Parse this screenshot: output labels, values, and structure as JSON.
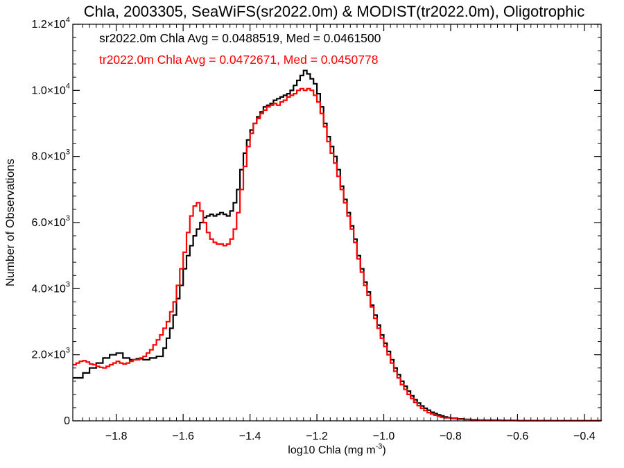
{
  "chart_data": {
    "type": "line",
    "step": true,
    "title": "Chla, 2003305, SeaWiFS(sr2022.0m) & MODIST(tr2022.0m), Oligotrophic",
    "xlabel": "log10 Chla (mg m",
    "xlabel_sup": "-3",
    "xlabel_tail": ")",
    "ylabel": "Number of Observations",
    "xlim": [
      -1.93,
      -0.35
    ],
    "ylim": [
      0,
      12000
    ],
    "grid": false,
    "x_ticks": [
      {
        "v": -1.8,
        "label": "−1.8"
      },
      {
        "v": -1.6,
        "label": "−1.6"
      },
      {
        "v": -1.4,
        "label": "−1.4"
      },
      {
        "v": -1.2,
        "label": "−1.2"
      },
      {
        "v": -1.0,
        "label": "−1.0"
      },
      {
        "v": -0.8,
        "label": "−0.8"
      },
      {
        "v": -0.6,
        "label": "−0.6"
      },
      {
        "v": -0.4,
        "label": "−0.4"
      }
    ],
    "y_ticks": [
      {
        "v": 0,
        "mant": "0",
        "exp": ""
      },
      {
        "v": 2000,
        "mant": "2.0×10",
        "exp": "3"
      },
      {
        "v": 4000,
        "mant": "4.0×10",
        "exp": "3"
      },
      {
        "v": 6000,
        "mant": "6.0×10",
        "exp": "3"
      },
      {
        "v": 8000,
        "mant": "8.0×10",
        "exp": "3"
      },
      {
        "v": 10000,
        "mant": "1.0×10",
        "exp": "4"
      },
      {
        "v": 12000,
        "mant": "1.2×10",
        "exp": "4"
      }
    ],
    "annotations": [
      {
        "text": "sr2022.0m Chla Avg = 0.0488519, Med = 0.0461500",
        "color": "#000000"
      },
      {
        "text": "tr2022.0m Chla Avg = 0.0472671, Med = 0.0450778",
        "color": "#ff0000"
      }
    ],
    "series": [
      {
        "color": "#000000",
        "points": [
          [
            -1.93,
            1300
          ],
          [
            -1.9,
            1450
          ],
          [
            -1.88,
            1600
          ],
          [
            -1.86,
            1750
          ],
          [
            -1.84,
            1900
          ],
          [
            -1.82,
            2000
          ],
          [
            -1.8,
            2050
          ],
          [
            -1.78,
            1900
          ],
          [
            -1.76,
            1850
          ],
          [
            -1.74,
            1880
          ],
          [
            -1.72,
            1850
          ],
          [
            -1.7,
            1900
          ],
          [
            -1.68,
            1950
          ],
          [
            -1.66,
            2200
          ],
          [
            -1.65,
            2500
          ],
          [
            -1.64,
            2800
          ],
          [
            -1.63,
            3200
          ],
          [
            -1.62,
            3700
          ],
          [
            -1.61,
            4100
          ],
          [
            -1.6,
            4600
          ],
          [
            -1.59,
            5000
          ],
          [
            -1.58,
            5300
          ],
          [
            -1.57,
            5600
          ],
          [
            -1.56,
            5800
          ],
          [
            -1.55,
            6000
          ],
          [
            -1.54,
            6150
          ],
          [
            -1.53,
            6200
          ],
          [
            -1.52,
            6250
          ],
          [
            -1.51,
            6200
          ],
          [
            -1.5,
            6250
          ],
          [
            -1.49,
            6300
          ],
          [
            -1.48,
            6250
          ],
          [
            -1.47,
            6200
          ],
          [
            -1.46,
            6350
          ],
          [
            -1.45,
            6600
          ],
          [
            -1.44,
            7000
          ],
          [
            -1.43,
            7600
          ],
          [
            -1.42,
            8100
          ],
          [
            -1.41,
            8500
          ],
          [
            -1.4,
            8800
          ],
          [
            -1.39,
            9000
          ],
          [
            -1.38,
            9200
          ],
          [
            -1.37,
            9350
          ],
          [
            -1.36,
            9500
          ],
          [
            -1.35,
            9550
          ],
          [
            -1.34,
            9600
          ],
          [
            -1.33,
            9700
          ],
          [
            -1.32,
            9750
          ],
          [
            -1.31,
            9800
          ],
          [
            -1.3,
            9850
          ],
          [
            -1.29,
            9900
          ],
          [
            -1.28,
            10000
          ],
          [
            -1.27,
            10150
          ],
          [
            -1.26,
            10300
          ],
          [
            -1.25,
            10450
          ],
          [
            -1.24,
            10600
          ],
          [
            -1.23,
            10500
          ],
          [
            -1.22,
            10350
          ],
          [
            -1.21,
            10200
          ],
          [
            -1.2,
            9900
          ],
          [
            -1.19,
            9500
          ],
          [
            -1.18,
            9000
          ],
          [
            -1.17,
            8600
          ],
          [
            -1.16,
            8300
          ],
          [
            -1.15,
            8000
          ],
          [
            -1.14,
            7600
          ],
          [
            -1.13,
            7100
          ],
          [
            -1.12,
            6700
          ],
          [
            -1.11,
            6300
          ],
          [
            -1.1,
            5900
          ],
          [
            -1.09,
            5500
          ],
          [
            -1.08,
            5000
          ],
          [
            -1.07,
            4600
          ],
          [
            -1.06,
            4200
          ],
          [
            -1.05,
            3900
          ],
          [
            -1.04,
            3500
          ],
          [
            -1.03,
            3200
          ],
          [
            -1.02,
            2900
          ],
          [
            -1.01,
            2600
          ],
          [
            -1.0,
            2350
          ],
          [
            -0.99,
            2100
          ],
          [
            -0.98,
            1850
          ],
          [
            -0.97,
            1600
          ],
          [
            -0.96,
            1400
          ],
          [
            -0.95,
            1200
          ],
          [
            -0.94,
            1050
          ],
          [
            -0.93,
            900
          ],
          [
            -0.92,
            760
          ],
          [
            -0.91,
            640
          ],
          [
            -0.9,
            540
          ],
          [
            -0.89,
            450
          ],
          [
            -0.88,
            380
          ],
          [
            -0.87,
            320
          ],
          [
            -0.86,
            260
          ],
          [
            -0.85,
            220
          ],
          [
            -0.84,
            180
          ],
          [
            -0.83,
            150
          ],
          [
            -0.82,
            120
          ],
          [
            -0.81,
            100
          ],
          [
            -0.8,
            80
          ],
          [
            -0.78,
            60
          ],
          [
            -0.76,
            45
          ],
          [
            -0.74,
            35
          ],
          [
            -0.72,
            25
          ],
          [
            -0.7,
            20
          ],
          [
            -0.65,
            12
          ],
          [
            -0.6,
            8
          ],
          [
            -0.5,
            4
          ],
          [
            -0.35,
            0
          ]
        ]
      },
      {
        "color": "#ff0000",
        "points": [
          [
            -1.93,
            1700
          ],
          [
            -1.92,
            1750
          ],
          [
            -1.91,
            1800
          ],
          [
            -1.9,
            1820
          ],
          [
            -1.89,
            1780
          ],
          [
            -1.88,
            1720
          ],
          [
            -1.87,
            1700
          ],
          [
            -1.86,
            1650
          ],
          [
            -1.85,
            1620
          ],
          [
            -1.84,
            1600
          ],
          [
            -1.83,
            1650
          ],
          [
            -1.82,
            1700
          ],
          [
            -1.81,
            1750
          ],
          [
            -1.8,
            1800
          ],
          [
            -1.79,
            1750
          ],
          [
            -1.78,
            1720
          ],
          [
            -1.77,
            1750
          ],
          [
            -1.76,
            1800
          ],
          [
            -1.75,
            1850
          ],
          [
            -1.74,
            1850
          ],
          [
            -1.73,
            1900
          ],
          [
            -1.72,
            1950
          ],
          [
            -1.71,
            2050
          ],
          [
            -1.7,
            2150
          ],
          [
            -1.69,
            2300
          ],
          [
            -1.68,
            2450
          ],
          [
            -1.67,
            2600
          ],
          [
            -1.66,
            2800
          ],
          [
            -1.65,
            3000
          ],
          [
            -1.64,
            3300
          ],
          [
            -1.63,
            3600
          ],
          [
            -1.62,
            4100
          ],
          [
            -1.61,
            4600
          ],
          [
            -1.6,
            5100
          ],
          [
            -1.59,
            5700
          ],
          [
            -1.58,
            6200
          ],
          [
            -1.57,
            6500
          ],
          [
            -1.56,
            6600
          ],
          [
            -1.55,
            6350
          ],
          [
            -1.54,
            6000
          ],
          [
            -1.53,
            5700
          ],
          [
            -1.52,
            5500
          ],
          [
            -1.51,
            5400
          ],
          [
            -1.5,
            5350
          ],
          [
            -1.49,
            5350
          ],
          [
            -1.48,
            5300
          ],
          [
            -1.47,
            5350
          ],
          [
            -1.46,
            5500
          ],
          [
            -1.45,
            5800
          ],
          [
            -1.44,
            6300
          ],
          [
            -1.43,
            7000
          ],
          [
            -1.42,
            7700
          ],
          [
            -1.41,
            8300
          ],
          [
            -1.4,
            8700
          ],
          [
            -1.39,
            9000
          ],
          [
            -1.38,
            9150
          ],
          [
            -1.37,
            9300
          ],
          [
            -1.36,
            9400
          ],
          [
            -1.35,
            9500
          ],
          [
            -1.34,
            9550
          ],
          [
            -1.33,
            9600
          ],
          [
            -1.32,
            9550
          ],
          [
            -1.31,
            9650
          ],
          [
            -1.3,
            9700
          ],
          [
            -1.29,
            9800
          ],
          [
            -1.28,
            9850
          ],
          [
            -1.27,
            9900
          ],
          [
            -1.26,
            10000
          ],
          [
            -1.25,
            10050
          ],
          [
            -1.24,
            10000
          ],
          [
            -1.23,
            10050
          ],
          [
            -1.22,
            10000
          ],
          [
            -1.21,
            9850
          ],
          [
            -1.2,
            9650
          ],
          [
            -1.19,
            9300
          ],
          [
            -1.18,
            8900
          ],
          [
            -1.17,
            8450
          ],
          [
            -1.16,
            8100
          ],
          [
            -1.15,
            7800
          ],
          [
            -1.14,
            7400
          ],
          [
            -1.13,
            7000
          ],
          [
            -1.12,
            6600
          ],
          [
            -1.11,
            6200
          ],
          [
            -1.1,
            5800
          ],
          [
            -1.09,
            5400
          ],
          [
            -1.08,
            4900
          ],
          [
            -1.07,
            4500
          ],
          [
            -1.06,
            4100
          ],
          [
            -1.05,
            3800
          ],
          [
            -1.04,
            3450
          ],
          [
            -1.03,
            3100
          ],
          [
            -1.02,
            2800
          ],
          [
            -1.01,
            2500
          ],
          [
            -1.0,
            2250
          ],
          [
            -0.99,
            2000
          ],
          [
            -0.98,
            1750
          ],
          [
            -0.97,
            1500
          ],
          [
            -0.96,
            1300
          ],
          [
            -0.95,
            1100
          ],
          [
            -0.94,
            950
          ],
          [
            -0.93,
            800
          ],
          [
            -0.92,
            680
          ],
          [
            -0.91,
            560
          ],
          [
            -0.9,
            460
          ],
          [
            -0.89,
            380
          ],
          [
            -0.88,
            310
          ],
          [
            -0.87,
            250
          ],
          [
            -0.86,
            210
          ],
          [
            -0.85,
            170
          ],
          [
            -0.84,
            140
          ],
          [
            -0.83,
            110
          ],
          [
            -0.82,
            90
          ],
          [
            -0.8,
            70
          ],
          [
            -0.78,
            50
          ],
          [
            -0.76,
            38
          ],
          [
            -0.74,
            28
          ],
          [
            -0.72,
            20
          ],
          [
            -0.7,
            15
          ],
          [
            -0.65,
            10
          ],
          [
            -0.6,
            6
          ],
          [
            -0.5,
            3
          ],
          [
            -0.35,
            0
          ]
        ]
      }
    ]
  }
}
